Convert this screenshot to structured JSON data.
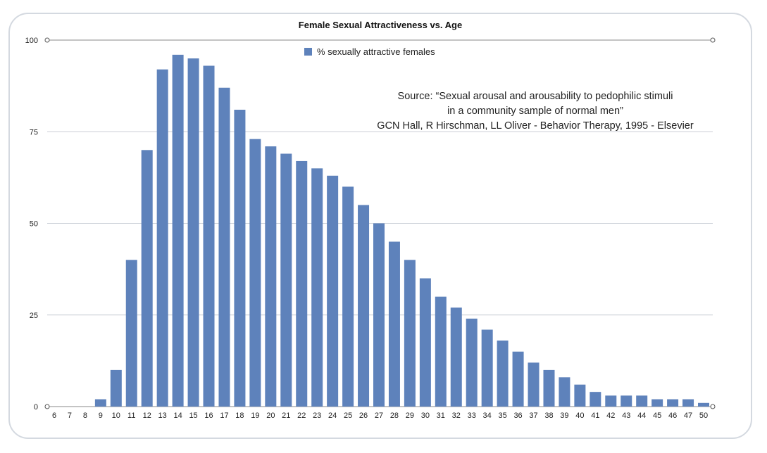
{
  "chart_data": {
    "type": "bar",
    "title": "Female Sexual Attractiveness vs. Age",
    "legend": {
      "label": "% sexually attractive females",
      "placement": "top-center"
    },
    "colors": {
      "bar": "#5e82bb",
      "grid": "#c9ced6",
      "axis": "#888888"
    },
    "ylim": [
      0,
      100
    ],
    "yticks": [
      0,
      25,
      50,
      75,
      100
    ],
    "grid": true,
    "categories": [
      "6",
      "7",
      "8",
      "9",
      "10",
      "11",
      "12",
      "13",
      "14",
      "15",
      "16",
      "17",
      "18",
      "19",
      "20",
      "21",
      "22",
      "23",
      "24",
      "25",
      "26",
      "27",
      "28",
      "29",
      "30",
      "31",
      "32",
      "33",
      "34",
      "35",
      "36",
      "37",
      "38",
      "39",
      "40",
      "41",
      "42",
      "43",
      "44",
      "45",
      "46",
      "47",
      "50"
    ],
    "values": [
      0,
      0,
      0,
      2,
      10,
      40,
      70,
      92,
      96,
      95,
      93,
      87,
      81,
      73,
      71,
      69,
      67,
      65,
      63,
      60,
      55,
      50,
      45,
      40,
      35,
      30,
      27,
      24,
      21,
      18,
      15,
      12,
      10,
      8,
      6,
      4,
      3,
      3,
      3,
      2,
      2,
      2,
      1
    ],
    "annotation": {
      "lines": [
        "Source: “Sexual arousal and arousability to pedophilic stimuli",
        "in a community sample of normal men”",
        "GCN Hall, R Hirschman, LL Oliver - Behavior Therapy, 1995 - Elsevier"
      ]
    }
  }
}
